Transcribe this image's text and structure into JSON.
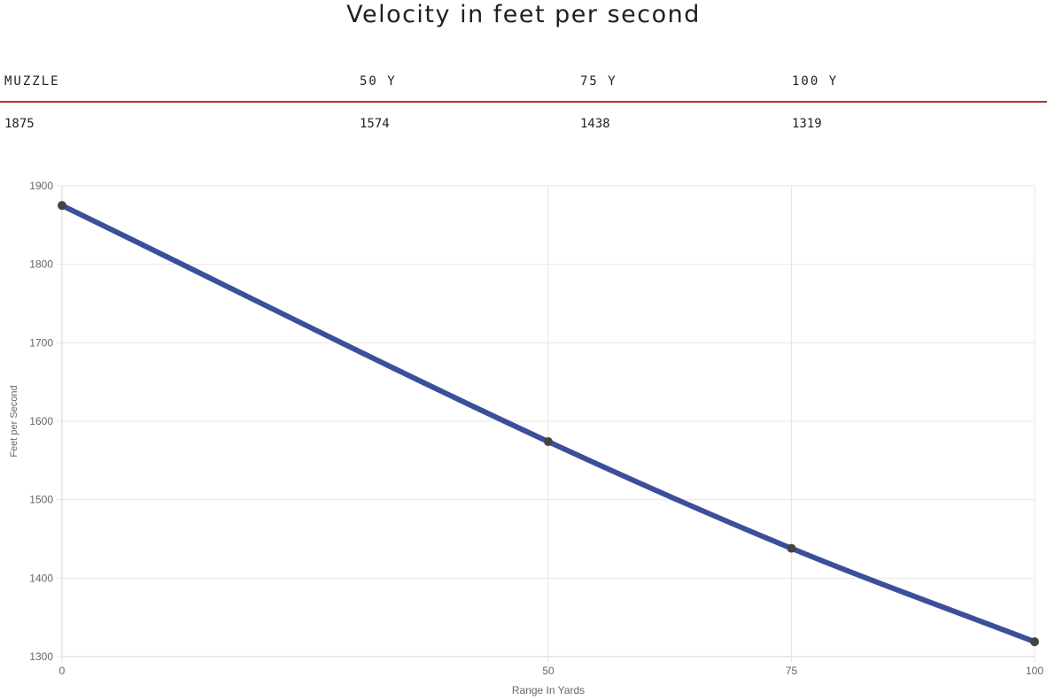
{
  "title": "Velocity in feet per second",
  "table": {
    "headers": [
      "MUZZLE",
      "50 Y",
      "75 Y",
      "100 Y"
    ],
    "values": [
      "1875",
      "1574",
      "1438",
      "1319"
    ]
  },
  "colors": {
    "accent_rule": "#b5322a",
    "line": "#3b4f9a",
    "point": "#444444",
    "grid": "#e6e6e6"
  },
  "chart_data": {
    "type": "line",
    "title": "Velocity in feet per second",
    "xlabel": "Range In Yards",
    "ylabel": "Feet per Second",
    "categories": [
      "0",
      "50",
      "75",
      "100"
    ],
    "x": [
      0,
      50,
      75,
      100
    ],
    "series": [
      {
        "name": "Velocity",
        "values": [
          1875,
          1574,
          1438,
          1319
        ]
      }
    ],
    "xlim": [
      0,
      100
    ],
    "ylim": [
      1300,
      1900
    ],
    "yticks": [
      1300,
      1400,
      1500,
      1600,
      1700,
      1800,
      1900
    ],
    "grid": true,
    "legend": "none"
  }
}
